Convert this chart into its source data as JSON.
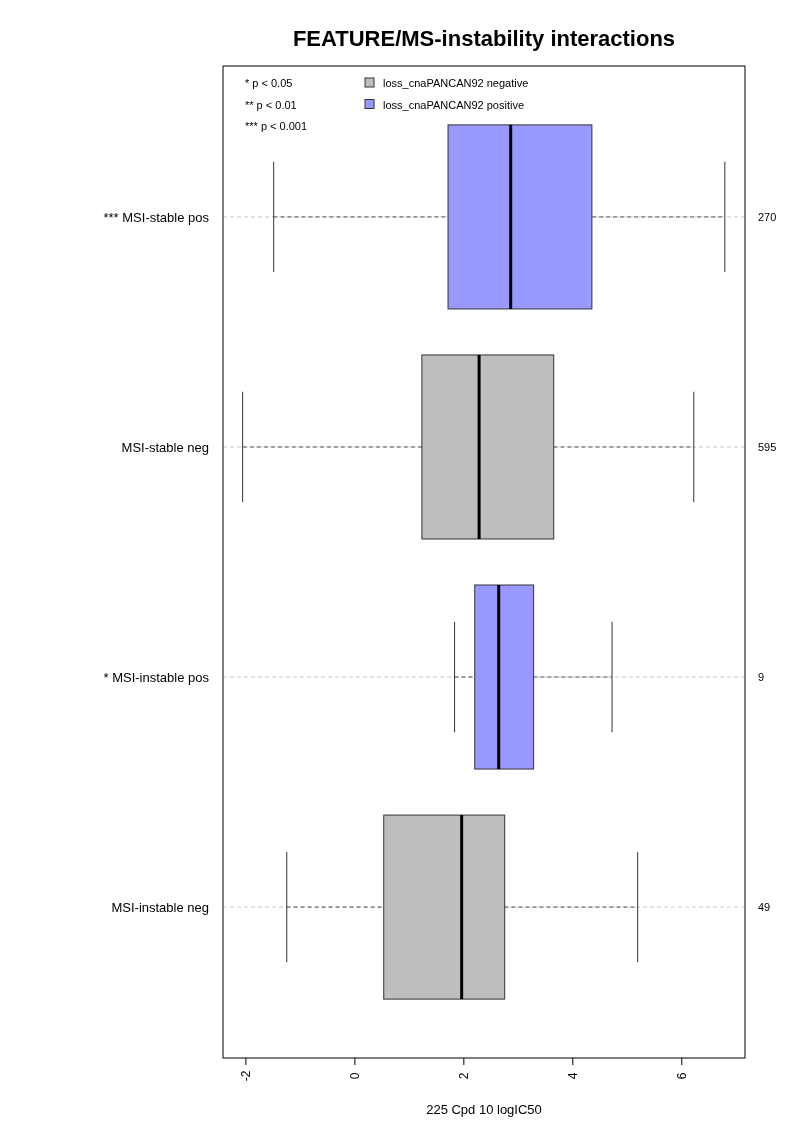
{
  "chart_data": {
    "type": "box",
    "orientation": "horizontal",
    "title": "FEATURE/MS-instability interactions",
    "xlabel": "225 Cpd 10 logIC50",
    "categories": [
      "*** MSI-stable pos",
      "MSI-stable neg",
      "* MSI-instable pos",
      "MSI-instable neg"
    ],
    "xlim": [
      -2.42,
      7.16
    ],
    "xticks": [
      -2,
      0,
      2,
      4,
      6
    ],
    "grid": "y",
    "legend": "top",
    "series": [
      {
        "name": "loss_cnaPANCAN92 negative",
        "color": "#bebebe",
        "boxes": [
          null,
          {
            "low": -2.06,
            "q1": 1.23,
            "median": 2.28,
            "q3": 3.65,
            "high": 6.22
          },
          null,
          {
            "low": -1.25,
            "q1": 0.53,
            "median": 1.96,
            "q3": 2.75,
            "high": 5.19
          }
        ]
      },
      {
        "name": "loss_cnaPANCAN92 positive",
        "color": "#9999ff",
        "boxes": [
          {
            "low": -1.49,
            "q1": 1.71,
            "median": 2.86,
            "q3": 4.35,
            "high": 6.79
          },
          null,
          {
            "low": 1.83,
            "q1": 2.2,
            "median": 2.64,
            "q3": 3.28,
            "high": 4.72
          },
          null
        ]
      }
    ],
    "annotations": [
      "270",
      "595",
      "9",
      "49",
      "* p < 0.05",
      "** p < 0.01",
      "*** p < 0.001"
    ]
  }
}
